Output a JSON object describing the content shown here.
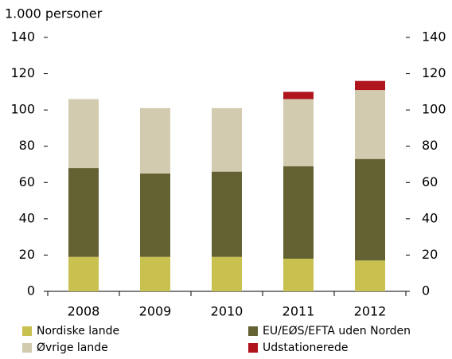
{
  "chart_data": {
    "type": "stacked_bar",
    "subtitle": "1.000 personer",
    "categories": [
      "2008",
      "2009",
      "2010",
      "2011",
      "2012"
    ],
    "series": [
      {
        "name": "Nordiske lande",
        "color": "#c8c04f",
        "values": [
          19,
          19,
          19,
          18,
          17
        ]
      },
      {
        "name": "EU/EØS/EFTA uden Norden",
        "color": "#646233",
        "values": [
          49,
          46,
          47,
          51,
          56
        ]
      },
      {
        "name": "Øvrige lande",
        "color": "#d3cbb0",
        "values": [
          38,
          36,
          35,
          37,
          38
        ]
      },
      {
        "name": "Udstationerede",
        "color": "#b0141c",
        "values": [
          0,
          0,
          0,
          4,
          5
        ]
      }
    ],
    "ylim": [
      0,
      140
    ],
    "yticks": [
      0,
      20,
      40,
      60,
      80,
      100,
      120,
      140
    ],
    "y2lim": [
      0,
      140
    ],
    "y2ticks": [
      0,
      20,
      40,
      60,
      80,
      100,
      120,
      140
    ]
  }
}
